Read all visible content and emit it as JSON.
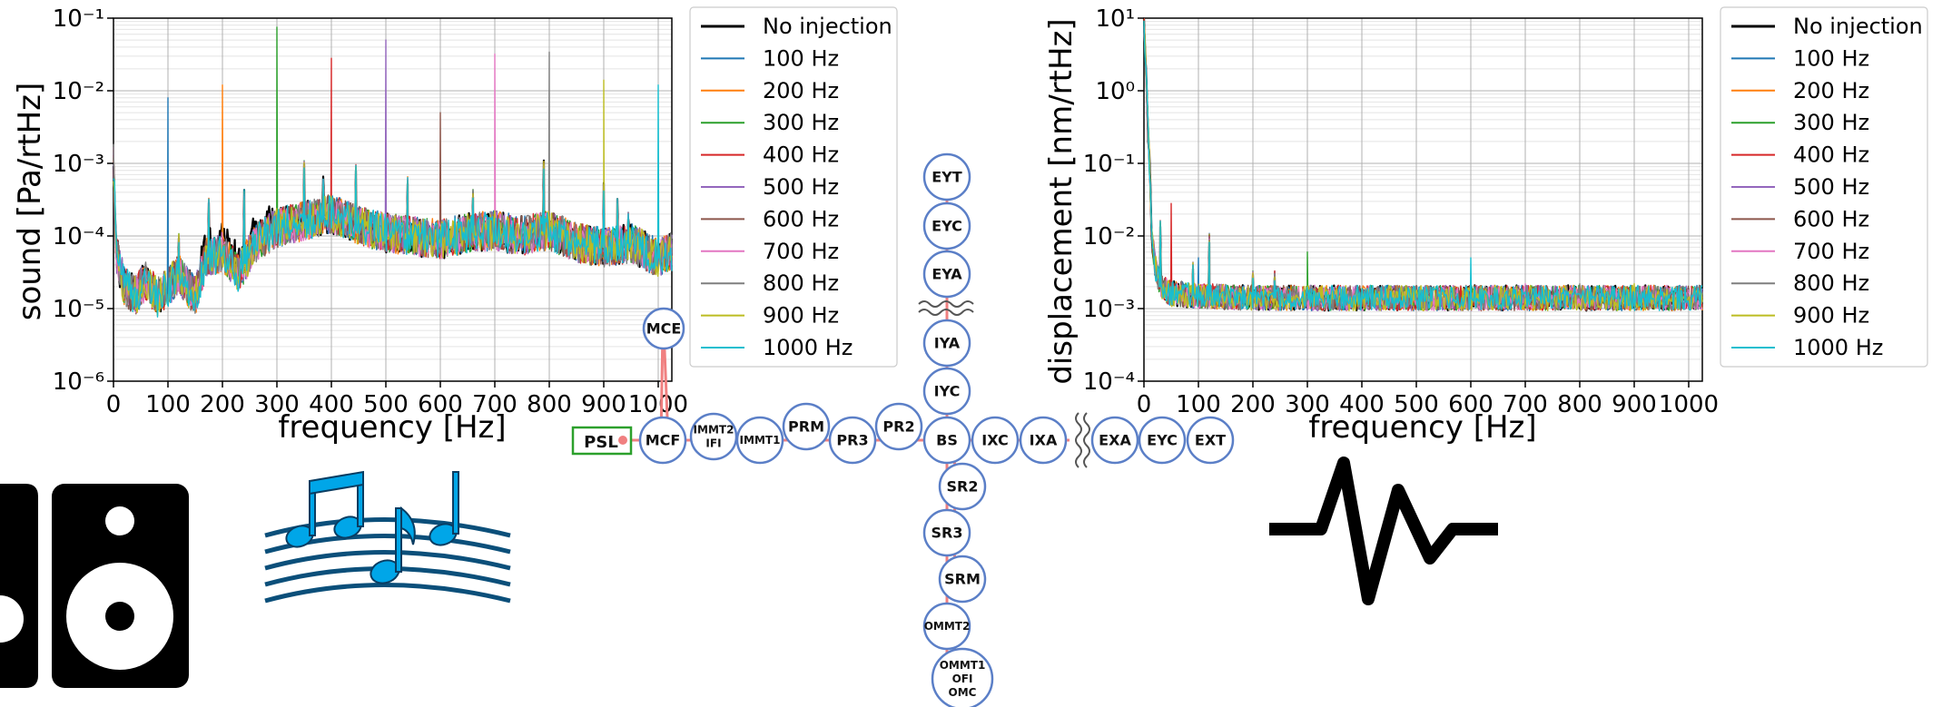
{
  "colors": {
    "series": [
      "#000000",
      "#1f77b4",
      "#ff7f0e",
      "#2ca02c",
      "#d62728",
      "#9467bd",
      "#8c564b",
      "#e377c2",
      "#7f7f7f",
      "#bcbd22",
      "#17becf"
    ],
    "node_stroke": "#5b7fc7",
    "beam": "#f08080",
    "psl_box": "#2ca02c",
    "icon": "#000000",
    "music_icon": "#00a6e8"
  },
  "chart_data": [
    {
      "type": "line",
      "xlabel": "frequency [Hz]",
      "ylabel": "sound [Pa/rtHz]",
      "xlim": [
        0,
        1025
      ],
      "ylim": [
        1e-06,
        0.1
      ],
      "yscale": "log",
      "grid": true,
      "legend_position": "right-outside",
      "x_ticks": [
        0,
        100,
        200,
        300,
        400,
        500,
        600,
        700,
        800,
        900,
        1000
      ],
      "x_tick_labels": [
        "0",
        "100",
        "200",
        "300",
        "400",
        "500",
        "600",
        "700",
        "800",
        "900",
        "1000"
      ],
      "y_ticks": [
        1e-06,
        1e-05,
        0.0001,
        0.001,
        0.01,
        0.1
      ],
      "y_tick_labels": [
        "10⁻⁶",
        "10⁻⁵",
        "10⁻⁴",
        "10⁻³",
        "10⁻²",
        "10⁻¹"
      ],
      "baseline": [
        [
          0,
          0.001
        ],
        [
          5,
          6e-05
        ],
        [
          20,
          2e-05
        ],
        [
          40,
          1.5e-05
        ],
        [
          60,
          2.5e-05
        ],
        [
          80,
          1.4e-05
        ],
        [
          100,
          2e-05
        ],
        [
          120,
          3e-05
        ],
        [
          135,
          2e-05
        ],
        [
          150,
          1.5e-05
        ],
        [
          170,
          5e-05
        ],
        [
          200,
          6e-05
        ],
        [
          230,
          3e-05
        ],
        [
          260,
          8e-05
        ],
        [
          300,
          0.00013
        ],
        [
          350,
          0.00016
        ],
        [
          400,
          0.0002
        ],
        [
          450,
          0.00014
        ],
        [
          500,
          0.00011
        ],
        [
          550,
          0.0001
        ],
        [
          600,
          9e-05
        ],
        [
          650,
          0.00011
        ],
        [
          700,
          0.00012
        ],
        [
          750,
          0.0001
        ],
        [
          800,
          0.00012
        ],
        [
          850,
          8e-05
        ],
        [
          900,
          7e-05
        ],
        [
          950,
          8e-05
        ],
        [
          1000,
          5e-05
        ],
        [
          1025,
          6e-05
        ]
      ],
      "common_peaks": [
        [
          120,
          0.0001
        ],
        [
          175,
          0.0003
        ],
        [
          240,
          0.0004
        ],
        [
          350,
          0.001
        ],
        [
          385,
          0.0006
        ],
        [
          445,
          0.0009
        ],
        [
          540,
          0.0006
        ],
        [
          660,
          0.0004
        ],
        [
          790,
          0.001
        ],
        [
          900,
          0.0005
        ],
        [
          925,
          0.0003
        ],
        [
          945,
          0.0002
        ]
      ],
      "series": [
        {
          "name": "No injection",
          "peak": null
        },
        {
          "name": "100 Hz",
          "peak": [
            100,
            0.008
          ]
        },
        {
          "name": "200 Hz",
          "peak": [
            200,
            0.012
          ]
        },
        {
          "name": "300 Hz",
          "peak": [
            300,
            0.075
          ]
        },
        {
          "name": "400 Hz",
          "peak": [
            400,
            0.028
          ]
        },
        {
          "name": "500 Hz",
          "peak": [
            500,
            0.05
          ]
        },
        {
          "name": "600 Hz",
          "peak": [
            600,
            0.005
          ]
        },
        {
          "name": "700 Hz",
          "peak": [
            700,
            0.032
          ]
        },
        {
          "name": "800 Hz",
          "peak": [
            800,
            0.034
          ]
        },
        {
          "name": "900 Hz",
          "peak": [
            900,
            0.014
          ]
        },
        {
          "name": "1000 Hz",
          "peak": [
            1000,
            0.012
          ]
        }
      ]
    },
    {
      "type": "line",
      "xlabel": "frequency [Hz]",
      "ylabel": "displacement [nm/rtHz]",
      "xlim": [
        0,
        1025
      ],
      "ylim": [
        0.0001,
        10
      ],
      "yscale": "log",
      "grid": true,
      "legend_position": "right-outside",
      "x_ticks": [
        0,
        100,
        200,
        300,
        400,
        500,
        600,
        700,
        800,
        900,
        1000
      ],
      "x_tick_labels": [
        "0",
        "100",
        "200",
        "300",
        "400",
        "500",
        "600",
        "700",
        "800",
        "900",
        "1000"
      ],
      "y_ticks": [
        0.0001,
        0.001,
        0.01,
        0.1,
        1,
        10
      ],
      "y_tick_labels": [
        "10⁻⁴",
        "10⁻³",
        "10⁻²",
        "10⁻¹",
        "10⁰",
        "10¹"
      ],
      "baseline": [
        [
          0,
          10
        ],
        [
          5,
          1.0
        ],
        [
          10,
          0.1
        ],
        [
          15,
          0.01
        ],
        [
          20,
          0.004
        ],
        [
          30,
          0.002
        ],
        [
          50,
          0.0016
        ],
        [
          100,
          0.0015
        ],
        [
          200,
          0.0014
        ],
        [
          400,
          0.0014
        ],
        [
          600,
          0.0014
        ],
        [
          800,
          0.0014
        ],
        [
          1025,
          0.0014
        ]
      ],
      "common_peaks": [
        [
          30,
          0.015
        ],
        [
          90,
          0.004
        ],
        [
          120,
          0.01
        ],
        [
          200,
          0.003
        ],
        [
          240,
          0.003
        ]
      ],
      "series": [
        {
          "name": "No injection",
          "peak": null
        },
        {
          "name": "100 Hz",
          "peak": [
            100,
            0.005
          ]
        },
        {
          "name": "200 Hz",
          "peak": [
            200,
            0.002
          ]
        },
        {
          "name": "300 Hz",
          "peak": [
            300,
            0.006
          ]
        },
        {
          "name": "400 Hz",
          "peak": [
            50,
            0.028
          ]
        },
        {
          "name": "500 Hz",
          "peak": [
            500,
            0.002
          ]
        },
        {
          "name": "600 Hz",
          "peak": [
            600,
            0.0022
          ]
        },
        {
          "name": "700 Hz",
          "peak": [
            700,
            0.0022
          ]
        },
        {
          "name": "800 Hz",
          "peak": [
            800,
            0.0022
          ]
        },
        {
          "name": "900 Hz",
          "peak": [
            900,
            0.0022
          ]
        },
        {
          "name": "1000 Hz",
          "peak": [
            600,
            0.005
          ]
        }
      ]
    }
  ],
  "diagram": {
    "psl_label": "PSL",
    "nodes": [
      {
        "id": "MCE",
        "label": "MCE"
      },
      {
        "id": "MCF",
        "label": "MCF"
      },
      {
        "id": "IMMT2",
        "label": "IMMT2",
        "label2": "IFI"
      },
      {
        "id": "IMMT1",
        "label": "IMMT1"
      },
      {
        "id": "PRM",
        "label": "PRM"
      },
      {
        "id": "PR3",
        "label": "PR3"
      },
      {
        "id": "PR2",
        "label": "PR2"
      },
      {
        "id": "BS",
        "label": "BS"
      },
      {
        "id": "IXC",
        "label": "IXC"
      },
      {
        "id": "IXA",
        "label": "IXA"
      },
      {
        "id": "EXA",
        "label": "EXA"
      },
      {
        "id": "EYC2",
        "label": "EYC"
      },
      {
        "id": "EXT",
        "label": "EXT"
      },
      {
        "id": "EYT",
        "label": "EYT"
      },
      {
        "id": "EYC",
        "label": "EYC"
      },
      {
        "id": "EYA",
        "label": "EYA"
      },
      {
        "id": "IYA",
        "label": "IYA"
      },
      {
        "id": "IYC",
        "label": "IYC"
      },
      {
        "id": "SR2",
        "label": "SR2"
      },
      {
        "id": "SR3",
        "label": "SR3"
      },
      {
        "id": "SRM",
        "label": "SRM"
      },
      {
        "id": "OMMT2",
        "label": "OMMT2"
      },
      {
        "id": "OMMT1",
        "label": "OMMT1",
        "label2": "OFI",
        "label3": "OMC"
      }
    ]
  },
  "icons": [
    "speaker-icon",
    "music-notes-icon",
    "vibration-pulse-icon"
  ]
}
